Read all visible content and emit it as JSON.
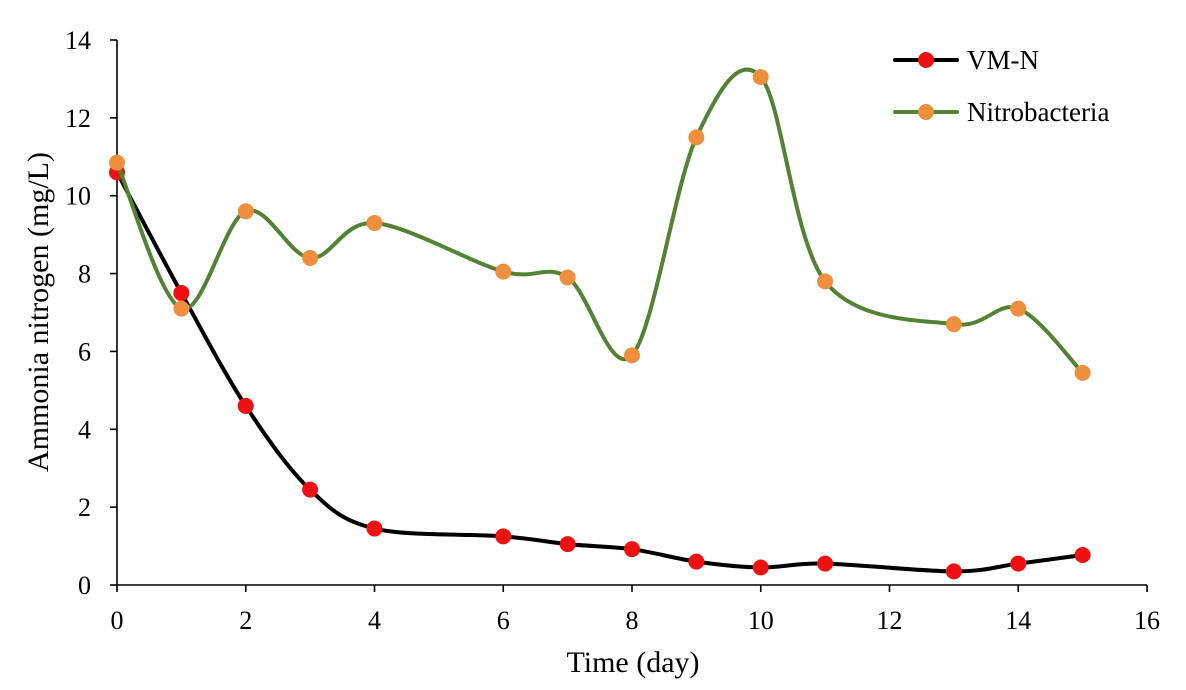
{
  "chart_data": {
    "type": "line",
    "xlabel": "Time (day)",
    "ylabel": "Ammonia nitrogen (mg/L)",
    "xlim": [
      0,
      16
    ],
    "ylim": [
      0,
      14
    ],
    "x_ticks": [
      0,
      2,
      4,
      6,
      8,
      10,
      12,
      14,
      16
    ],
    "y_ticks": [
      0,
      2,
      4,
      6,
      8,
      10,
      12,
      14
    ],
    "grid": false,
    "smooth": true,
    "legend_position": "top-right",
    "series": [
      {
        "name": "VM-N",
        "line_color": "#000000",
        "marker_color": "#ee1111",
        "x": [
          0,
          1,
          2,
          3,
          4,
          6,
          7,
          8,
          9,
          10,
          11,
          13,
          14,
          15
        ],
        "y": [
          10.6,
          7.5,
          4.6,
          2.45,
          1.45,
          1.25,
          1.05,
          0.92,
          0.6,
          0.45,
          0.55,
          0.35,
          0.55,
          0.77
        ]
      },
      {
        "name": "Nitrobacteria",
        "line_color": "#548235",
        "marker_color": "#ed8f3c",
        "x": [
          0,
          1,
          2,
          3,
          4,
          6,
          7,
          8,
          9,
          10,
          11,
          13,
          14,
          15
        ],
        "y": [
          10.85,
          7.1,
          9.6,
          8.4,
          9.3,
          8.05,
          7.9,
          5.9,
          11.5,
          13.05,
          7.8,
          6.7,
          7.1,
          5.45
        ]
      }
    ]
  }
}
